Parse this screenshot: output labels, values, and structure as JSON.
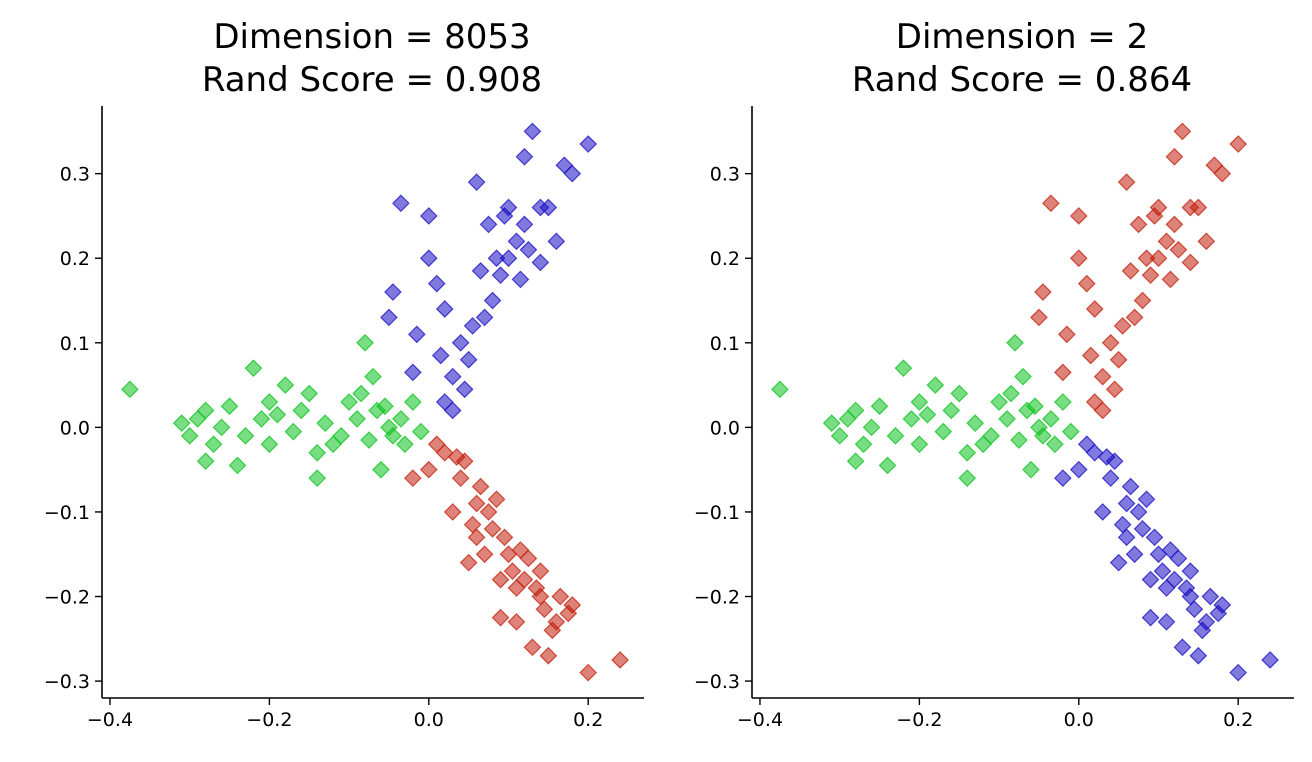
{
  "chart_data": [
    {
      "type": "scatter",
      "title_line1": "Dimension = 8053",
      "title_line2": "Rand Score = 0.908",
      "xlabel": "",
      "ylabel": "",
      "xlim": [
        -0.41,
        0.27
      ],
      "ylim": [
        -0.32,
        0.38
      ],
      "xticks": [
        -0.4,
        -0.2,
        0.0,
        0.2
      ],
      "xtick_labels": [
        "−0.4",
        "−0.2",
        "0.0",
        "0.2"
      ],
      "yticks": [
        -0.3,
        -0.2,
        -0.1,
        0.0,
        0.1,
        0.2,
        0.3
      ],
      "ytick_labels": [
        "−0.3",
        "−0.2",
        "−0.1",
        "0.0",
        "0.1",
        "0.2",
        "0.3"
      ],
      "grid": false,
      "marker": "diamond",
      "series": [
        {
          "color": "#1a0dc2",
          "points": [
            [
              0.05,
              0.08
            ],
            [
              0.08,
              0.15
            ],
            [
              0.1,
              0.2
            ],
            [
              0.12,
              0.24
            ],
            [
              0.14,
              0.26
            ],
            [
              0.13,
              0.35
            ],
            [
              0.2,
              0.335
            ],
            [
              0.18,
              0.3
            ],
            [
              0.12,
              0.32
            ],
            [
              0.17,
              0.31
            ],
            [
              0.06,
              0.29
            ],
            [
              -0.035,
              0.265
            ],
            [
              0.0,
              0.25
            ],
            [
              -0.045,
              0.16
            ],
            [
              -0.05,
              0.13
            ],
            [
              -0.02,
              0.065
            ],
            [
              0.02,
              0.03
            ],
            [
              0.04,
              0.1
            ],
            [
              0.07,
              0.13
            ],
            [
              0.09,
              0.18
            ],
            [
              0.11,
              0.22
            ],
            [
              0.03,
              0.06
            ],
            [
              0.055,
              0.12
            ],
            [
              0.085,
              0.2
            ],
            [
              0.095,
              0.25
            ],
            [
              0.15,
              0.26
            ],
            [
              0.16,
              0.22
            ],
            [
              0.0,
              0.2
            ],
            [
              0.01,
              0.17
            ],
            [
              0.02,
              0.14
            ],
            [
              -0.015,
              0.11
            ],
            [
              0.03,
              0.02
            ],
            [
              0.1,
              0.26
            ],
            [
              0.075,
              0.24
            ],
            [
              0.065,
              0.185
            ],
            [
              0.115,
              0.175
            ],
            [
              0.14,
              0.195
            ],
            [
              0.045,
              0.045
            ],
            [
              0.015,
              0.085
            ],
            [
              0.125,
              0.21
            ]
          ]
        },
        {
          "color": "#0bc21d",
          "points": [
            [
              -0.375,
              0.045
            ],
            [
              -0.31,
              0.005
            ],
            [
              -0.3,
              -0.01
            ],
            [
              -0.28,
              0.02
            ],
            [
              -0.25,
              0.025
            ],
            [
              -0.22,
              0.07
            ],
            [
              -0.2,
              -0.02
            ],
            [
              -0.18,
              0.05
            ],
            [
              -0.15,
              0.04
            ],
            [
              -0.12,
              -0.02
            ],
            [
              -0.1,
              0.03
            ],
            [
              -0.08,
              0.1
            ],
            [
              -0.07,
              0.06
            ],
            [
              -0.05,
              0.0
            ],
            [
              -0.03,
              -0.02
            ],
            [
              -0.02,
              0.03
            ],
            [
              -0.28,
              -0.04
            ],
            [
              -0.24,
              -0.045
            ],
            [
              -0.14,
              -0.06
            ],
            [
              -0.06,
              -0.05
            ],
            [
              -0.26,
              0.0
            ],
            [
              -0.23,
              -0.01
            ],
            [
              -0.21,
              0.01
            ],
            [
              -0.19,
              0.015
            ],
            [
              -0.17,
              -0.005
            ],
            [
              -0.16,
              0.02
            ],
            [
              -0.13,
              0.005
            ],
            [
              -0.11,
              -0.01
            ],
            [
              -0.09,
              0.01
            ],
            [
              -0.075,
              -0.015
            ],
            [
              -0.065,
              0.02
            ],
            [
              -0.045,
              -0.01
            ],
            [
              -0.035,
              0.01
            ],
            [
              -0.01,
              -0.005
            ],
            [
              -0.29,
              0.01
            ],
            [
              -0.27,
              -0.02
            ],
            [
              -0.2,
              0.03
            ],
            [
              -0.14,
              -0.03
            ],
            [
              -0.085,
              0.04
            ],
            [
              -0.055,
              0.025
            ]
          ]
        },
        {
          "color": "#c21d0b",
          "points": [
            [
              0.02,
              -0.03
            ],
            [
              0.04,
              -0.06
            ],
            [
              0.06,
              -0.09
            ],
            [
              0.08,
              -0.12
            ],
            [
              0.1,
              -0.15
            ],
            [
              0.12,
              -0.18
            ],
            [
              0.14,
              -0.2
            ],
            [
              0.16,
              -0.23
            ],
            [
              0.18,
              -0.21
            ],
            [
              0.2,
              -0.29
            ],
            [
              0.24,
              -0.275
            ],
            [
              0.13,
              -0.26
            ],
            [
              0.15,
              -0.27
            ],
            [
              0.09,
              -0.225
            ],
            [
              0.11,
              -0.23
            ],
            [
              0.05,
              -0.16
            ],
            [
              0.03,
              -0.1
            ],
            [
              0.0,
              -0.05
            ],
            [
              -0.02,
              -0.06
            ],
            [
              0.07,
              -0.15
            ],
            [
              0.09,
              -0.18
            ],
            [
              0.105,
              -0.17
            ],
            [
              0.125,
              -0.155
            ],
            [
              0.085,
              -0.085
            ],
            [
              0.065,
              -0.07
            ],
            [
              0.045,
              -0.04
            ],
            [
              0.01,
              -0.02
            ],
            [
              0.035,
              -0.035
            ],
            [
              0.055,
              -0.115
            ],
            [
              0.075,
              -0.1
            ],
            [
              0.095,
              -0.13
            ],
            [
              0.115,
              -0.145
            ],
            [
              0.135,
              -0.19
            ],
            [
              0.145,
              -0.215
            ],
            [
              0.155,
              -0.24
            ],
            [
              0.165,
              -0.2
            ],
            [
              0.175,
              -0.22
            ],
            [
              0.11,
              -0.19
            ],
            [
              0.14,
              -0.17
            ],
            [
              0.06,
              -0.13
            ]
          ]
        }
      ]
    },
    {
      "type": "scatter",
      "title_line1": "Dimension = 2",
      "title_line2": "Rand Score = 0.864",
      "xlabel": "",
      "ylabel": "",
      "xlim": [
        -0.41,
        0.27
      ],
      "ylim": [
        -0.32,
        0.38
      ],
      "xticks": [
        -0.4,
        -0.2,
        0.0,
        0.2
      ],
      "xtick_labels": [
        "−0.4",
        "−0.2",
        "0.0",
        "0.2"
      ],
      "yticks": [
        -0.3,
        -0.2,
        -0.1,
        0.0,
        0.1,
        0.2,
        0.3
      ],
      "ytick_labels": [
        "−0.3",
        "−0.2",
        "−0.1",
        "0.0",
        "0.1",
        "0.2",
        "0.3"
      ],
      "grid": false,
      "marker": "diamond",
      "series": [
        {
          "color": "#c21d0b",
          "points": [
            [
              0.05,
              0.08
            ],
            [
              0.08,
              0.15
            ],
            [
              0.1,
              0.2
            ],
            [
              0.12,
              0.24
            ],
            [
              0.14,
              0.26
            ],
            [
              0.13,
              0.35
            ],
            [
              0.2,
              0.335
            ],
            [
              0.18,
              0.3
            ],
            [
              0.12,
              0.32
            ],
            [
              0.17,
              0.31
            ],
            [
              0.06,
              0.29
            ],
            [
              -0.035,
              0.265
            ],
            [
              0.0,
              0.25
            ],
            [
              -0.045,
              0.16
            ],
            [
              -0.05,
              0.13
            ],
            [
              -0.02,
              0.065
            ],
            [
              0.02,
              0.03
            ],
            [
              0.04,
              0.1
            ],
            [
              0.07,
              0.13
            ],
            [
              0.09,
              0.18
            ],
            [
              0.11,
              0.22
            ],
            [
              0.03,
              0.06
            ],
            [
              0.055,
              0.12
            ],
            [
              0.085,
              0.2
            ],
            [
              0.095,
              0.25
            ],
            [
              0.15,
              0.26
            ],
            [
              0.16,
              0.22
            ],
            [
              0.0,
              0.2
            ],
            [
              0.01,
              0.17
            ],
            [
              0.02,
              0.14
            ],
            [
              -0.015,
              0.11
            ],
            [
              0.03,
              0.02
            ],
            [
              0.1,
              0.26
            ],
            [
              0.075,
              0.24
            ],
            [
              0.065,
              0.185
            ],
            [
              0.115,
              0.175
            ],
            [
              0.14,
              0.195
            ],
            [
              0.045,
              0.045
            ],
            [
              0.015,
              0.085
            ],
            [
              0.125,
              0.21
            ]
          ]
        },
        {
          "color": "#0bc21d",
          "points": [
            [
              -0.375,
              0.045
            ],
            [
              -0.31,
              0.005
            ],
            [
              -0.3,
              -0.01
            ],
            [
              -0.28,
              0.02
            ],
            [
              -0.25,
              0.025
            ],
            [
              -0.22,
              0.07
            ],
            [
              -0.2,
              -0.02
            ],
            [
              -0.18,
              0.05
            ],
            [
              -0.15,
              0.04
            ],
            [
              -0.12,
              -0.02
            ],
            [
              -0.1,
              0.03
            ],
            [
              -0.08,
              0.1
            ],
            [
              -0.07,
              0.06
            ],
            [
              -0.05,
              0.0
            ],
            [
              -0.03,
              -0.02
            ],
            [
              -0.02,
              0.03
            ],
            [
              -0.28,
              -0.04
            ],
            [
              -0.24,
              -0.045
            ],
            [
              -0.14,
              -0.06
            ],
            [
              -0.06,
              -0.05
            ],
            [
              -0.26,
              0.0
            ],
            [
              -0.23,
              -0.01
            ],
            [
              -0.21,
              0.01
            ],
            [
              -0.19,
              0.015
            ],
            [
              -0.17,
              -0.005
            ],
            [
              -0.16,
              0.02
            ],
            [
              -0.13,
              0.005
            ],
            [
              -0.11,
              -0.01
            ],
            [
              -0.09,
              0.01
            ],
            [
              -0.075,
              -0.015
            ],
            [
              -0.065,
              0.02
            ],
            [
              -0.045,
              -0.01
            ],
            [
              -0.035,
              0.01
            ],
            [
              -0.01,
              -0.005
            ],
            [
              -0.29,
              0.01
            ],
            [
              -0.27,
              -0.02
            ],
            [
              -0.2,
              0.03
            ],
            [
              -0.14,
              -0.03
            ],
            [
              -0.085,
              0.04
            ],
            [
              -0.055,
              0.025
            ]
          ]
        },
        {
          "color": "#1a0dc2",
          "points": [
            [
              0.02,
              -0.03
            ],
            [
              0.04,
              -0.06
            ],
            [
              0.06,
              -0.09
            ],
            [
              0.08,
              -0.12
            ],
            [
              0.1,
              -0.15
            ],
            [
              0.12,
              -0.18
            ],
            [
              0.14,
              -0.2
            ],
            [
              0.16,
              -0.23
            ],
            [
              0.18,
              -0.21
            ],
            [
              0.2,
              -0.29
            ],
            [
              0.24,
              -0.275
            ],
            [
              0.13,
              -0.26
            ],
            [
              0.15,
              -0.27
            ],
            [
              0.09,
              -0.225
            ],
            [
              0.11,
              -0.23
            ],
            [
              0.05,
              -0.16
            ],
            [
              0.03,
              -0.1
            ],
            [
              0.0,
              -0.05
            ],
            [
              -0.02,
              -0.06
            ],
            [
              0.07,
              -0.15
            ],
            [
              0.09,
              -0.18
            ],
            [
              0.105,
              -0.17
            ],
            [
              0.125,
              -0.155
            ],
            [
              0.085,
              -0.085
            ],
            [
              0.065,
              -0.07
            ],
            [
              0.045,
              -0.04
            ],
            [
              0.01,
              -0.02
            ],
            [
              0.035,
              -0.035
            ],
            [
              0.055,
              -0.115
            ],
            [
              0.075,
              -0.1
            ],
            [
              0.095,
              -0.13
            ],
            [
              0.115,
              -0.145
            ],
            [
              0.135,
              -0.19
            ],
            [
              0.145,
              -0.215
            ],
            [
              0.155,
              -0.24
            ],
            [
              0.165,
              -0.2
            ],
            [
              0.175,
              -0.22
            ],
            [
              0.11,
              -0.19
            ],
            [
              0.14,
              -0.17
            ],
            [
              0.06,
              -0.13
            ]
          ]
        }
      ]
    }
  ]
}
